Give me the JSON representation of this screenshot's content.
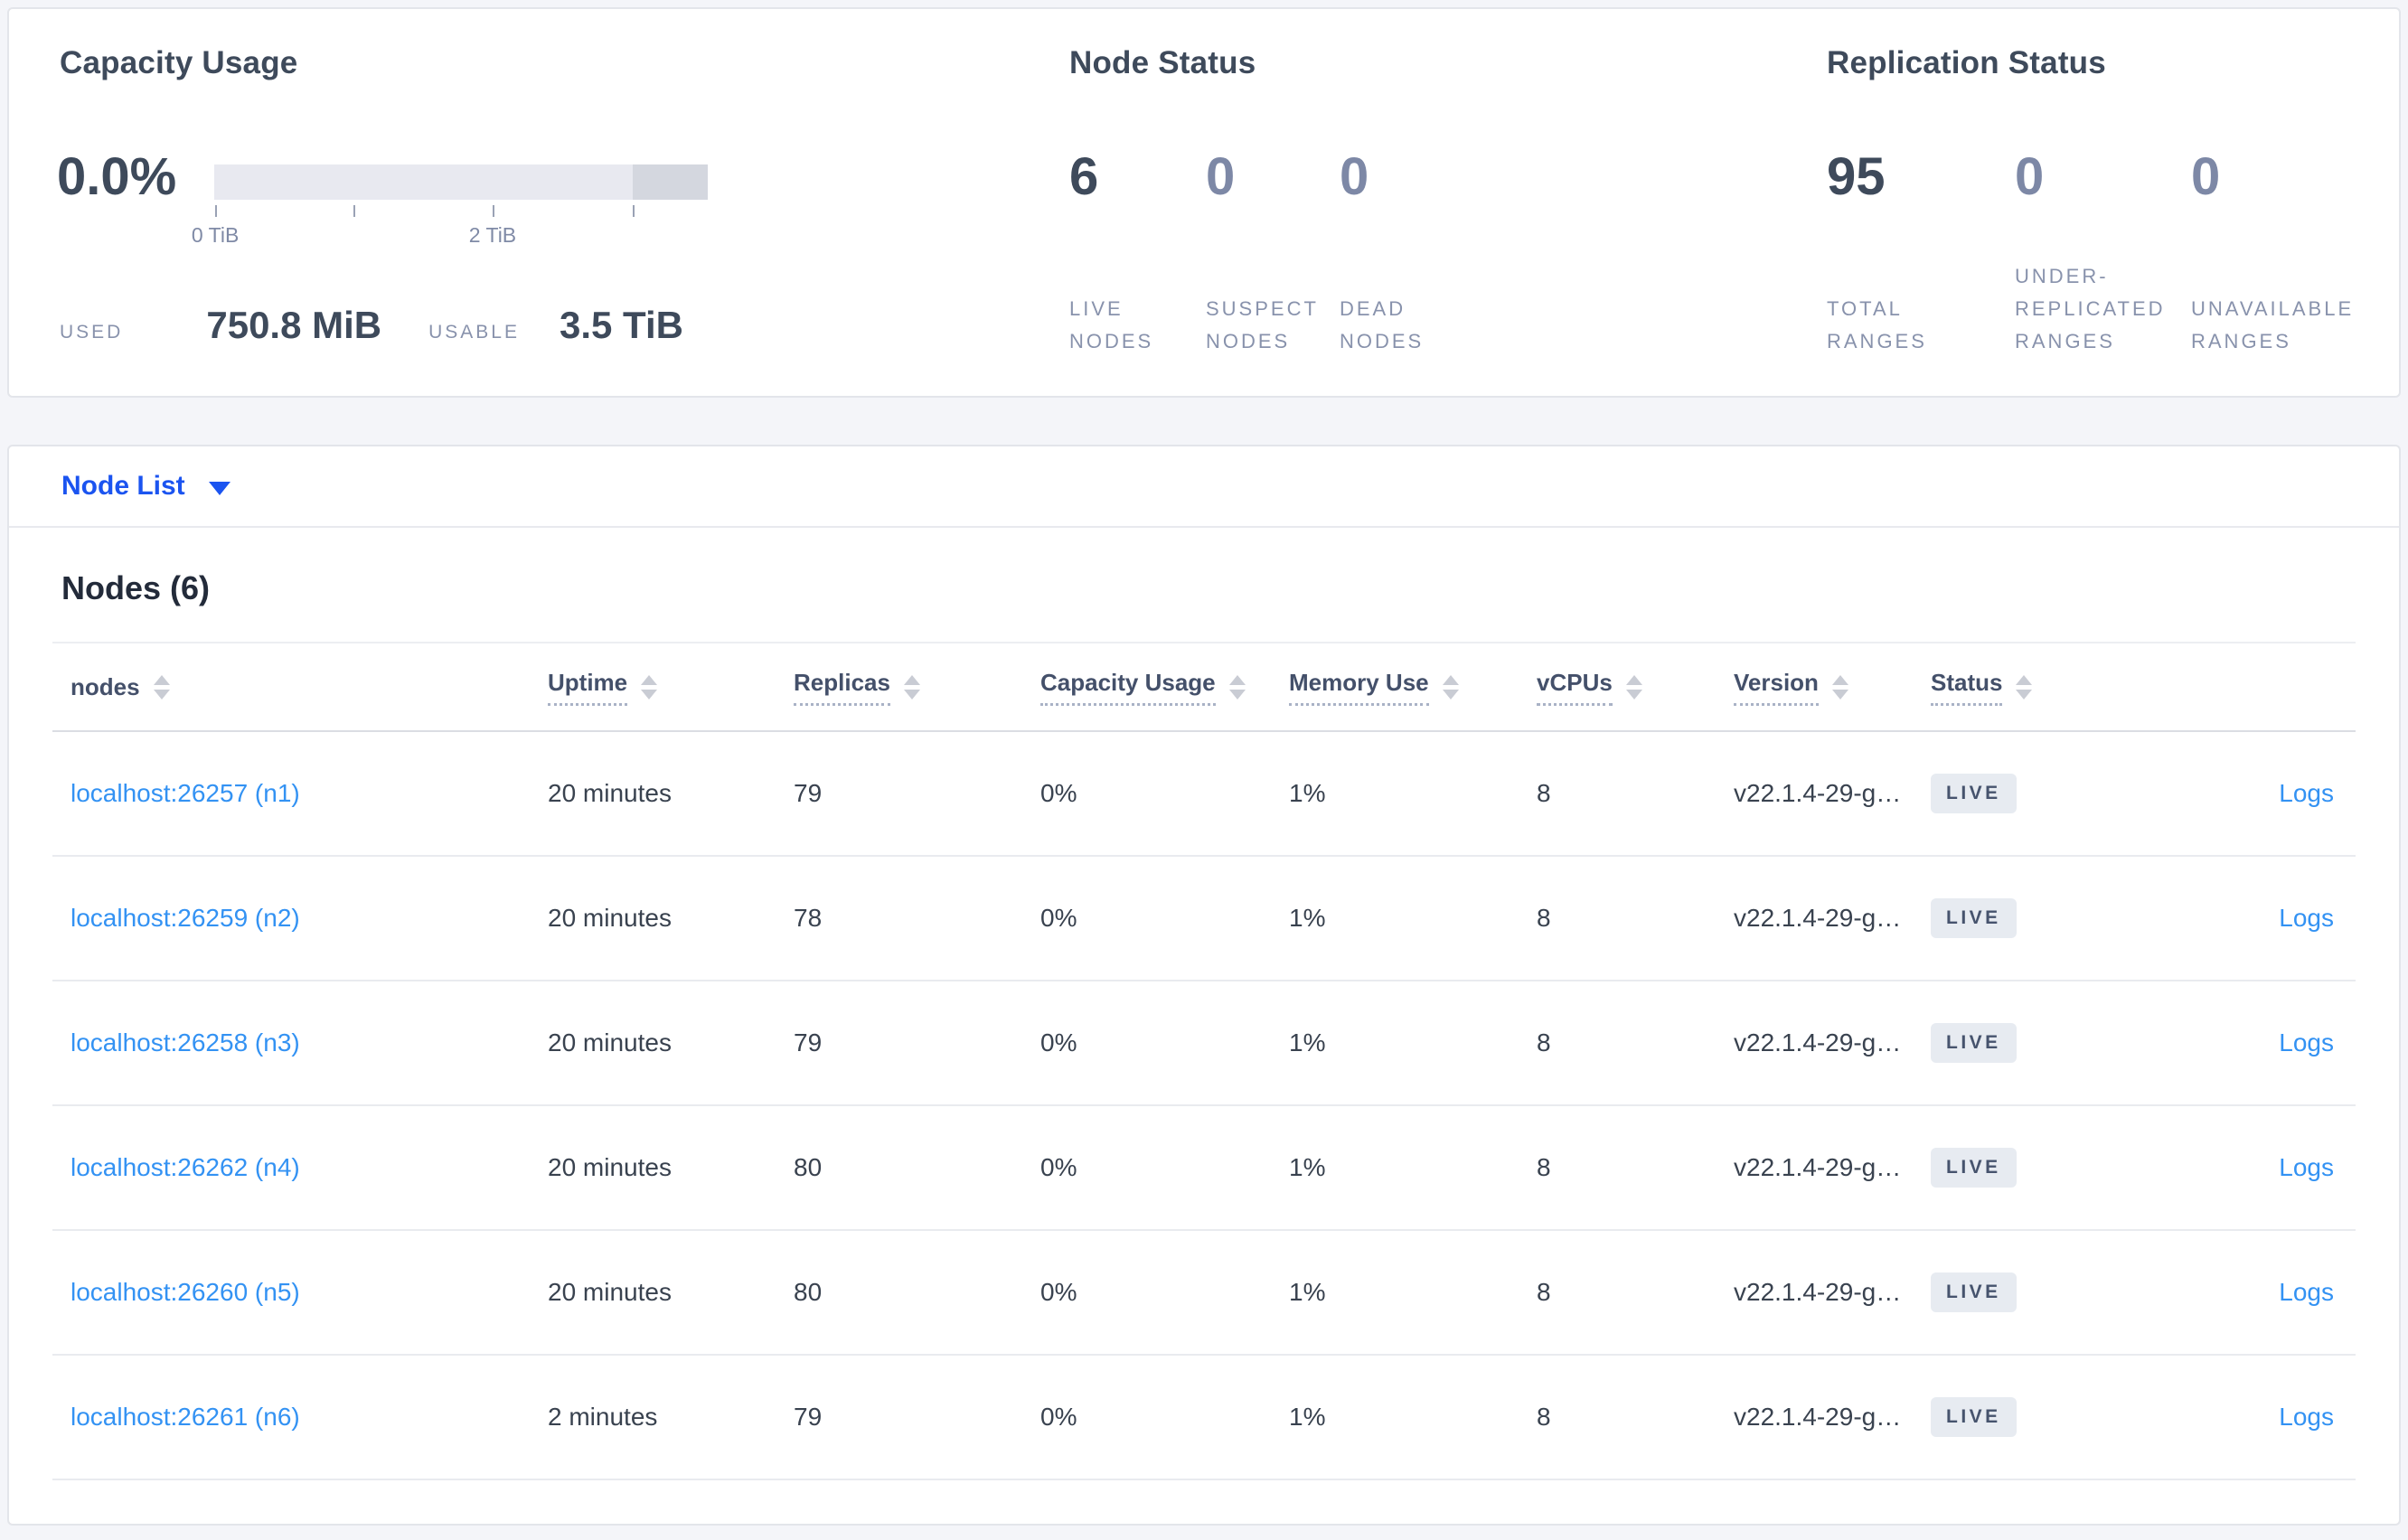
{
  "capacity": {
    "title": "Capacity Usage",
    "percent": "0.0%",
    "tick_labels": [
      "0 TiB",
      "2 TiB"
    ],
    "used_label": "USED",
    "used_value": "750.8 MiB",
    "usable_label": "USABLE",
    "usable_value": "3.5 TiB"
  },
  "node_status": {
    "title": "Node Status",
    "metrics": [
      {
        "value": "6",
        "label": "LIVE\nNODES"
      },
      {
        "value": "0",
        "label": "SUSPECT\nNODES"
      },
      {
        "value": "0",
        "label": "DEAD\nNODES"
      }
    ]
  },
  "replication_status": {
    "title": "Replication Status",
    "metrics": [
      {
        "value": "95",
        "label": "TOTAL\nRANGES"
      },
      {
        "value": "0",
        "label": "UNDER-\nREPLICATED\nRANGES"
      },
      {
        "value": "0",
        "label": "UNAVAILABLE\nRANGES"
      }
    ]
  },
  "node_list": {
    "label": "Node List"
  },
  "nodes": {
    "title": "Nodes (6)",
    "columns": [
      "nodes",
      "Uptime",
      "Replicas",
      "Capacity Usage",
      "Memory Use",
      "vCPUs",
      "Version",
      "Status"
    ],
    "rows": [
      {
        "node": "localhost:26257 (n1)",
        "uptime": "20 minutes",
        "replicas": "79",
        "capacity": "0%",
        "memory": "1%",
        "vcpus": "8",
        "version": "v22.1.4-29-g…",
        "status": "LIVE",
        "logs": "Logs"
      },
      {
        "node": "localhost:26259 (n2)",
        "uptime": "20 minutes",
        "replicas": "78",
        "capacity": "0%",
        "memory": "1%",
        "vcpus": "8",
        "version": "v22.1.4-29-g…",
        "status": "LIVE",
        "logs": "Logs"
      },
      {
        "node": "localhost:26258 (n3)",
        "uptime": "20 minutes",
        "replicas": "79",
        "capacity": "0%",
        "memory": "1%",
        "vcpus": "8",
        "version": "v22.1.4-29-g…",
        "status": "LIVE",
        "logs": "Logs"
      },
      {
        "node": "localhost:26262 (n4)",
        "uptime": "20 minutes",
        "replicas": "80",
        "capacity": "0%",
        "memory": "1%",
        "vcpus": "8",
        "version": "v22.1.4-29-g…",
        "status": "LIVE",
        "logs": "Logs"
      },
      {
        "node": "localhost:26260 (n5)",
        "uptime": "20 minutes",
        "replicas": "80",
        "capacity": "0%",
        "memory": "1%",
        "vcpus": "8",
        "version": "v22.1.4-29-g…",
        "status": "LIVE",
        "logs": "Logs"
      },
      {
        "node": "localhost:26261 (n6)",
        "uptime": "2 minutes",
        "replicas": "79",
        "capacity": "0%",
        "memory": "1%",
        "vcpus": "8",
        "version": "v22.1.4-29-g…",
        "status": "LIVE",
        "logs": "Logs"
      }
    ]
  },
  "colors": {
    "page_background": "#f4f5f9",
    "accent_blue": "#1b54f0",
    "link_blue": "#3392f3",
    "heading": "#3e4a5b",
    "muted_label": "#8892ac",
    "badge_background": "#e7ebf1",
    "bar_track": "#e8e9f0",
    "bar_dark_segment": "#d4d7df"
  }
}
